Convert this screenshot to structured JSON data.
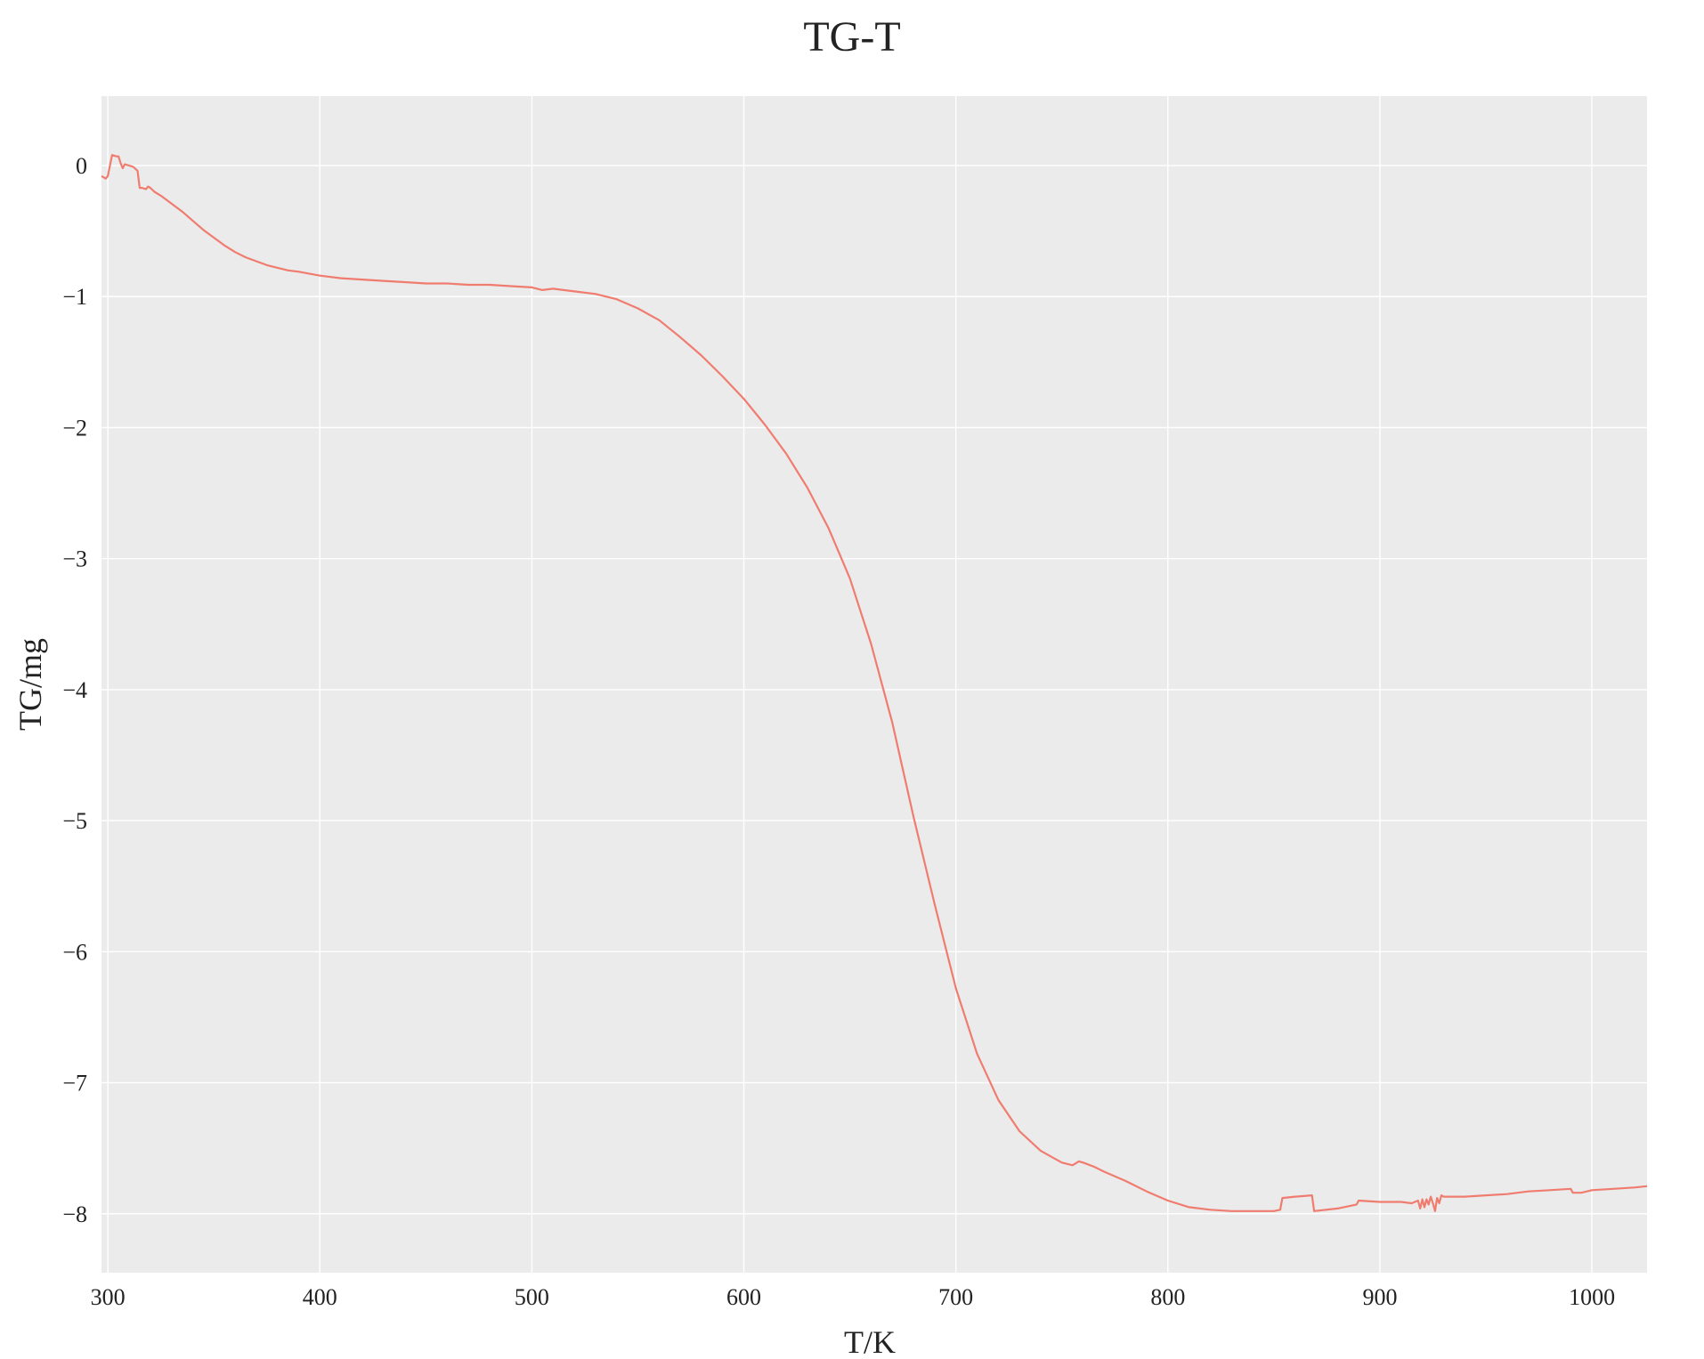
{
  "chart_data": {
    "type": "line",
    "title": "TG-T",
    "xlabel": "T/K",
    "ylabel": "TG/mg",
    "xlim": [
      297,
      1026
    ],
    "ylim": [
      -8.45,
      0.53
    ],
    "xticks": [
      300,
      400,
      500,
      600,
      700,
      800,
      900,
      1000
    ],
    "yticks": [
      0,
      -1,
      -2,
      -3,
      -4,
      -5,
      -6,
      -7,
      -8
    ],
    "ytick_labels": [
      "0",
      "−1",
      "−2",
      "−3",
      "−4",
      "−5",
      "−6",
      "−7",
      "−8"
    ],
    "grid": true,
    "background": "#ebebeb",
    "line_color": "#f07c70",
    "series": [
      {
        "x": [
          297,
          299,
          300,
          302,
          304,
          305,
          306,
          307,
          308,
          310,
          312,
          314,
          315,
          316,
          318,
          319,
          320,
          322,
          325,
          330,
          335,
          340,
          345,
          350,
          355,
          360,
          365,
          370,
          375,
          380,
          385,
          390,
          400,
          410,
          420,
          430,
          440,
          450,
          460,
          470,
          480,
          490,
          500,
          505,
          510,
          520,
          530,
          540,
          550,
          560,
          570,
          580,
          590,
          600,
          610,
          620,
          630,
          640,
          650,
          660,
          670,
          680,
          690,
          700,
          710,
          720,
          730,
          740,
          750,
          755,
          758,
          760,
          765,
          770,
          780,
          790,
          800,
          810,
          820,
          830,
          840,
          850,
          853,
          854,
          860,
          868,
          869,
          880,
          889,
          890,
          900,
          910,
          915,
          918,
          919,
          920,
          921,
          922,
          923,
          924,
          925,
          926,
          927,
          928,
          929,
          930,
          935,
          940,
          950,
          960,
          970,
          980,
          990,
          991,
          995,
          1000,
          1010,
          1020,
          1026
        ],
        "y": [
          -0.08,
          -0.1,
          -0.08,
          0.08,
          0.07,
          0.07,
          0.02,
          -0.02,
          0.01,
          0.0,
          -0.01,
          -0.04,
          -0.17,
          -0.17,
          -0.18,
          -0.16,
          -0.17,
          -0.2,
          -0.23,
          -0.29,
          -0.35,
          -0.42,
          -0.49,
          -0.55,
          -0.61,
          -0.66,
          -0.7,
          -0.73,
          -0.76,
          -0.78,
          -0.8,
          -0.81,
          -0.84,
          -0.86,
          -0.87,
          -0.88,
          -0.89,
          -0.9,
          -0.9,
          -0.91,
          -0.91,
          -0.92,
          -0.93,
          -0.95,
          -0.94,
          -0.96,
          -0.98,
          -1.02,
          -1.09,
          -1.18,
          -1.31,
          -1.45,
          -1.61,
          -1.78,
          -1.98,
          -2.2,
          -2.46,
          -2.77,
          -3.15,
          -3.65,
          -4.25,
          -4.97,
          -5.64,
          -6.28,
          -6.78,
          -7.13,
          -7.37,
          -7.52,
          -7.61,
          -7.63,
          -7.6,
          -7.61,
          -7.64,
          -7.68,
          -7.75,
          -7.83,
          -7.9,
          -7.95,
          -7.97,
          -7.98,
          -7.98,
          -7.98,
          -7.97,
          -7.88,
          -7.87,
          -7.86,
          -7.98,
          -7.96,
          -7.93,
          -7.9,
          -7.91,
          -7.91,
          -7.92,
          -7.9,
          -7.96,
          -7.89,
          -7.95,
          -7.89,
          -7.93,
          -7.87,
          -7.92,
          -7.98,
          -7.88,
          -7.92,
          -7.86,
          -7.87,
          -7.87,
          -7.87,
          -7.86,
          -7.85,
          -7.83,
          -7.82,
          -7.81,
          -7.84,
          -7.84,
          -7.82,
          -7.81,
          -7.8,
          -7.79
        ]
      }
    ]
  }
}
